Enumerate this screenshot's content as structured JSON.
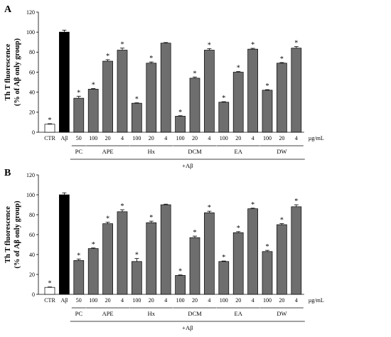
{
  "chart_data": [
    {
      "panel": "A",
      "type": "bar",
      "ylabel_line1": "Th T fluorescence",
      "ylabel_line2": "(% of Aβ only group)",
      "ylim": [
        0,
        120
      ],
      "yticks": [
        0,
        20,
        40,
        60,
        80,
        100,
        120
      ],
      "unit": "µg/mL",
      "treatment_label": "+Aβ",
      "categories": [
        "CTR",
        "Aβ",
        "50",
        "100",
        "20",
        "4",
        "100",
        "20",
        "4",
        "100",
        "20",
        "4",
        "100",
        "20",
        "4",
        "100",
        "20",
        "4"
      ],
      "groups": [
        {
          "label": "PC",
          "start": 2,
          "end": 2
        },
        {
          "label": "APE",
          "start": 3,
          "end": 5
        },
        {
          "label": "Hx",
          "start": 6,
          "end": 8
        },
        {
          "label": "DCM",
          "start": 9,
          "end": 11
        },
        {
          "label": "EA",
          "start": 12,
          "end": 14
        },
        {
          "label": "DW",
          "start": 15,
          "end": 17
        }
      ],
      "values": [
        8,
        100,
        34,
        43,
        71,
        82,
        29,
        69,
        89,
        16,
        54,
        82,
        30,
        60,
        83,
        42,
        69,
        84
      ],
      "errors": [
        0.5,
        2,
        2,
        0.6,
        1.5,
        2,
        0.4,
        1.2,
        0.6,
        0.5,
        1.2,
        1.5,
        0.5,
        0.6,
        0.8,
        0.5,
        0.6,
        1.5
      ],
      "fills": [
        "#ffffff",
        "#000000",
        "#6e6e6e",
        "#6e6e6e",
        "#6e6e6e",
        "#6e6e6e",
        "#6e6e6e",
        "#6e6e6e",
        "#6e6e6e",
        "#6e6e6e",
        "#6e6e6e",
        "#6e6e6e",
        "#6e6e6e",
        "#6e6e6e",
        "#6e6e6e",
        "#6e6e6e",
        "#6e6e6e",
        "#6e6e6e"
      ],
      "significant": [
        true,
        false,
        true,
        true,
        true,
        true,
        true,
        true,
        false,
        true,
        true,
        true,
        true,
        true,
        true,
        true,
        true,
        true
      ],
      "star_label": "*"
    },
    {
      "panel": "B",
      "type": "bar",
      "ylabel_line1": "Th T fluorescence",
      "ylabel_line2": "(% of Aβ only group)",
      "ylim": [
        0,
        120
      ],
      "yticks": [
        0,
        20,
        40,
        60,
        80,
        100,
        120
      ],
      "unit": "µg/mL",
      "treatment_label": "+Aβ",
      "categories": [
        "CTR",
        "Aβ",
        "50",
        "100",
        "20",
        "4",
        "100",
        "20",
        "4",
        "100",
        "20",
        "4",
        "100",
        "20",
        "4",
        "100",
        "20",
        "4"
      ],
      "groups": [
        {
          "label": "PC",
          "start": 2,
          "end": 2
        },
        {
          "label": "APE",
          "start": 3,
          "end": 5
        },
        {
          "label": "Hx",
          "start": 6,
          "end": 8
        },
        {
          "label": "DCM",
          "start": 9,
          "end": 11
        },
        {
          "label": "EA",
          "start": 12,
          "end": 14
        },
        {
          "label": "DW",
          "start": 15,
          "end": 17
        }
      ],
      "values": [
        7,
        100,
        34,
        46,
        71,
        83,
        33,
        72,
        90,
        19,
        57,
        82,
        33,
        62,
        86,
        43,
        70,
        88
      ],
      "errors": [
        0.4,
        2,
        1.5,
        0.6,
        1.5,
        2,
        3,
        1.5,
        0.6,
        0.5,
        1.5,
        1.5,
        0.5,
        1,
        0.6,
        1.2,
        1,
        2
      ],
      "fills": [
        "#ffffff",
        "#000000",
        "#6e6e6e",
        "#6e6e6e",
        "#6e6e6e",
        "#6e6e6e",
        "#6e6e6e",
        "#6e6e6e",
        "#6e6e6e",
        "#6e6e6e",
        "#6e6e6e",
        "#6e6e6e",
        "#6e6e6e",
        "#6e6e6e",
        "#6e6e6e",
        "#6e6e6e",
        "#6e6e6e",
        "#6e6e6e"
      ],
      "significant": [
        true,
        false,
        true,
        true,
        true,
        true,
        true,
        true,
        false,
        true,
        true,
        true,
        true,
        true,
        true,
        true,
        true,
        true
      ],
      "star_label": "*"
    }
  ]
}
